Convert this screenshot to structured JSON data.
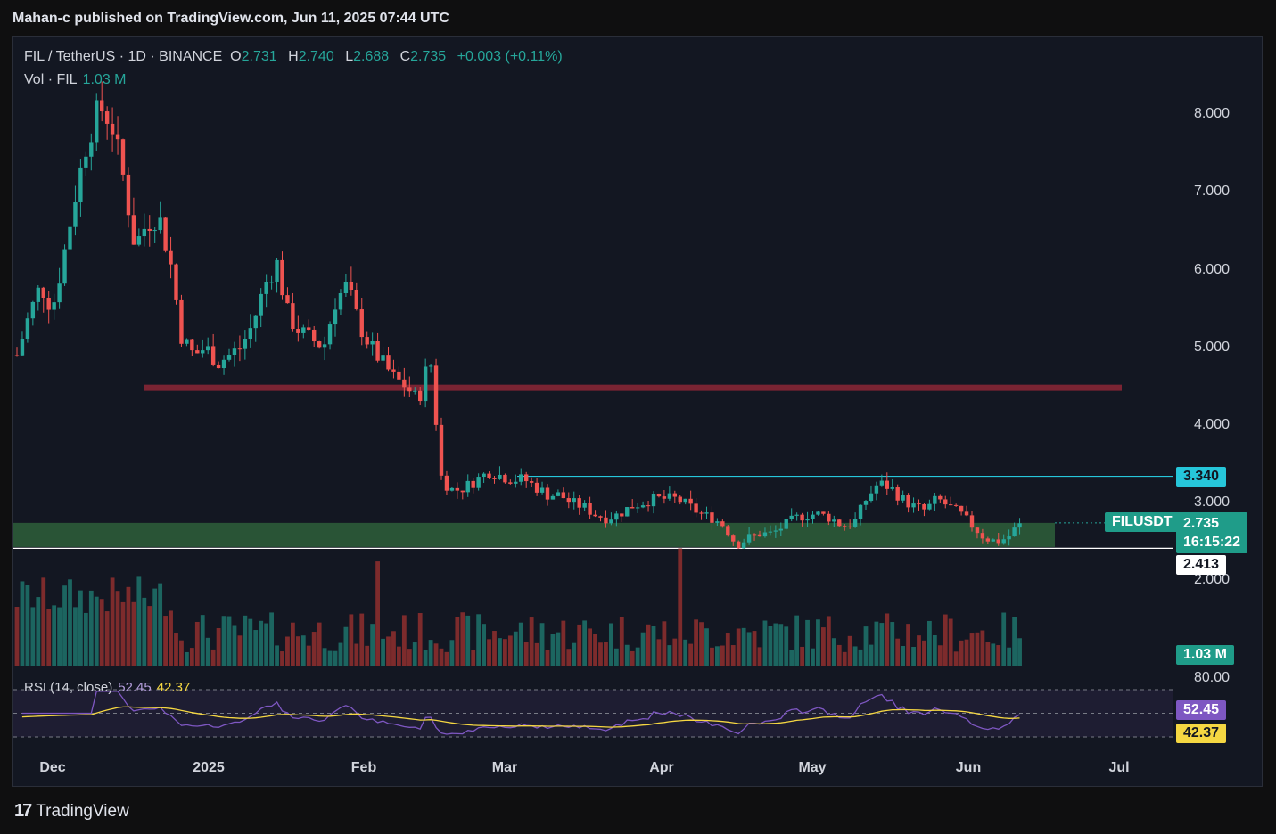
{
  "header": {
    "published": "Mahan-c published on TradingView.com, Jun 11, 2025 07:44 UTC"
  },
  "legend": {
    "symbol": "FIL / TetherUS · 1D · BINANCE",
    "o_label": "O",
    "o": "2.731",
    "h_label": "H",
    "h": "2.740",
    "l_label": "L",
    "l": "2.688",
    "c_label": "C",
    "c": "2.735",
    "change": "+0.003 (+0.11%)",
    "vol_label": "Vol · FIL",
    "vol": "1.03 M",
    "rsi_label": "RSI (14, close)",
    "rsi": "52.45",
    "rsi_ma": "42.37"
  },
  "tags": {
    "resistance": "3.340",
    "symbol": "FILUSDT",
    "price": "2.735",
    "countdown": "16:15:22",
    "support": "2.413",
    "volume": "1.03 M",
    "rsi_top": "80.00",
    "rsi": "52.45",
    "rsi_ma": "42.37"
  },
  "brand": {
    "logo": "17",
    "name": "TradingView"
  },
  "colors": {
    "up": "#26a69a",
    "down": "#ef5350",
    "zone": "#2e5f3a",
    "resistance_band": "#7a2433",
    "rsi": "#7e57c2",
    "rsi_ma": "#f5d742",
    "cyan": "#26c6da"
  },
  "chart_data": {
    "type": "candlestick",
    "symbol": "FIL / TetherUS",
    "timeframe": "1D",
    "exchange": "BINANCE",
    "y_ticks": [
      "8.000",
      "7.000",
      "6.000",
      "5.000",
      "4.000",
      "3.000",
      "2.000"
    ],
    "x_ticks": [
      "Dec",
      "2025",
      "Feb",
      "Mar",
      "Apr",
      "May",
      "Jun",
      "Jul"
    ],
    "ylim": [
      1.9,
      8.6
    ],
    "levels": {
      "horizontal_line_1": 3.34,
      "horizontal_line_2": 2.413,
      "band_1": [
        4.44,
        4.52
      ],
      "zone_1": [
        2.43,
        2.74
      ]
    },
    "close_series": [
      4.9,
      5.4,
      5.8,
      5.5,
      6.2,
      7.0,
      7.7,
      8.1,
      7.9,
      7.2,
      6.3,
      6.6,
      6.7,
      6.1,
      5.1,
      4.9,
      5.0,
      4.8,
      4.9,
      5.0,
      5.3,
      5.8,
      6.1,
      5.4,
      5.2,
      5.1,
      5.0,
      5.6,
      5.8,
      5.3,
      5.0,
      4.8,
      4.6,
      4.5,
      4.3,
      4.9,
      3.3,
      3.15,
      3.2,
      3.3,
      3.4,
      3.35,
      3.3,
      3.3,
      3.2,
      3.1,
      3.1,
      3.0,
      2.95,
      2.85,
      2.8,
      2.85,
      2.95,
      3.0,
      3.05,
      3.05,
      3.05,
      2.95,
      2.85,
      2.8,
      2.7,
      2.45,
      2.55,
      2.6,
      2.6,
      2.7,
      2.8,
      2.85,
      2.85,
      2.8,
      2.7,
      2.75,
      3.05,
      3.25,
      3.2,
      3.05,
      2.95,
      2.9,
      3.05,
      2.95,
      2.85,
      2.7,
      2.55,
      2.5,
      2.55,
      2.735
    ],
    "volume_last": "1.03 M",
    "rsi": {
      "length": 14,
      "last": 52.45,
      "ma_last": 42.37,
      "levels": [
        80,
        50,
        20
      ]
    }
  }
}
